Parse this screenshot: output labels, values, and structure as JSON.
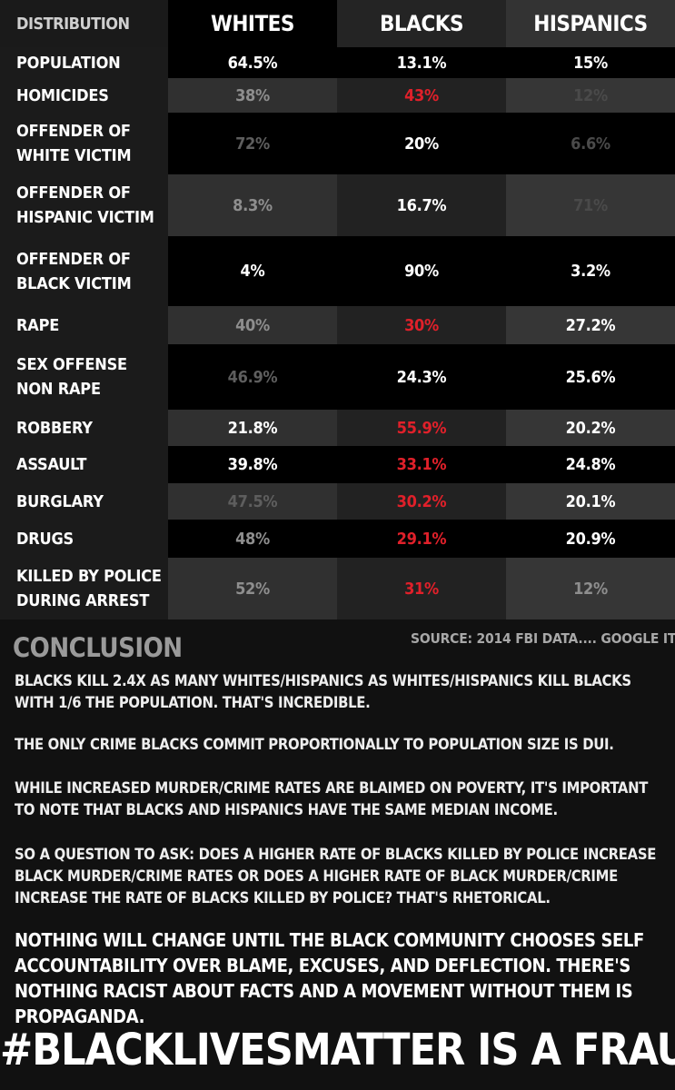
{
  "table": {
    "headers": {
      "label": "DISTRIBUTION",
      "whites": "WHITES",
      "blacks": "BLACKS",
      "hispanics": "HISPANICS"
    },
    "rows": [
      {
        "label": "POPULATION",
        "whites": "64.5%",
        "blacks": "13.1%",
        "hispanics": "15%"
      },
      {
        "label": "HOMICIDES",
        "whites": "38%",
        "blacks": "43%",
        "hispanics": "12%"
      },
      {
        "label": "OFFENDER OF\nWHITE VICTIM",
        "whites": "72%",
        "blacks": "20%",
        "hispanics": "6.6%"
      },
      {
        "label": "OFFENDER OF\nHISPANIC VICTIM",
        "whites": "8.3%",
        "blacks": "16.7%",
        "hispanics": "71%"
      },
      {
        "label": "OFFENDER OF\nBLACK VICTIM",
        "whites": "4%",
        "blacks": "90%",
        "hispanics": "3.2%"
      },
      {
        "label": "RAPE",
        "whites": "40%",
        "blacks": "30%",
        "hispanics": "27.2%"
      },
      {
        "label": "SEX OFFENSE\nNON RAPE",
        "whites": "46.9%",
        "blacks": "24.3%",
        "hispanics": "25.6%"
      },
      {
        "label": "ROBBERY",
        "whites": "21.8%",
        "blacks": "55.9%",
        "hispanics": "20.2%"
      },
      {
        "label": "ASSAULT",
        "whites": "39.8%",
        "blacks": "33.1%",
        "hispanics": "24.8%"
      },
      {
        "label": "BURGLARY",
        "whites": "47.5%",
        "blacks": "30.2%",
        "hispanics": "20.1%"
      },
      {
        "label": "DRUGS",
        "whites": "48%",
        "blacks": "29.1%",
        "hispanics": "20.9%"
      },
      {
        "label": "KILLED BY POLICE\nDURING ARREST",
        "whites": "52%",
        "blacks": "31%",
        "hispanics": "12%"
      }
    ]
  },
  "conclusion": {
    "title": "CONCLUSION",
    "source": "SOURCE: 2014 FBI DATA....   GOOGLE IT",
    "paragraphs": [
      "BLACKS KILL 2.4X AS MANY WHITES/HISPANICS AS WHITES/HISPANICS KILL BLACKS WITH 1/6 THE POPULATION. THAT'S INCREDIBLE.",
      "THE ONLY CRIME BLACKS COMMIT PROPORTIONALLY TO POPULATION SIZE IS DUI.",
      "WHILE INCREASED MURDER/CRIME RATES ARE BLAIMED ON POVERTY, IT'S IMPORTANT TO NOTE THAT BLACKS AND HISPANICS HAVE THE SAME MEDIAN INCOME.",
      "SO A QUESTION TO ASK:  DOES A HIGHER RATE OF BLACKS KILLED BY POLICE INCREASE BLACK MURDER/CRIME RATES OR DOES A HIGHER RATE OF BLACK MURDER/CRIME INCREASE THE RATE OF BLACKS KILLED BY POLICE? THAT'S RHETORICAL."
    ],
    "final_statement": "NOTHING WILL CHANGE UNTIL THE BLACK COMMUNITY CHOOSES SELF ACCOUNTABILITY OVER BLAME, EXCUSES, AND DEFLECTION. THERE'S NOTHING RACIST ABOUT FACTS AND A MOVEMENT WITHOUT THEM IS PROPAGANDA.",
    "hashtag": "#BLACKLIVESMATTER IS A FRAUD"
  },
  "colors": {
    "background": "#111111",
    "highlight_red": "#e0202a",
    "label_column": "#1a1a1a",
    "row_dark": "#000000",
    "row_gray": "#2f2f2f"
  }
}
